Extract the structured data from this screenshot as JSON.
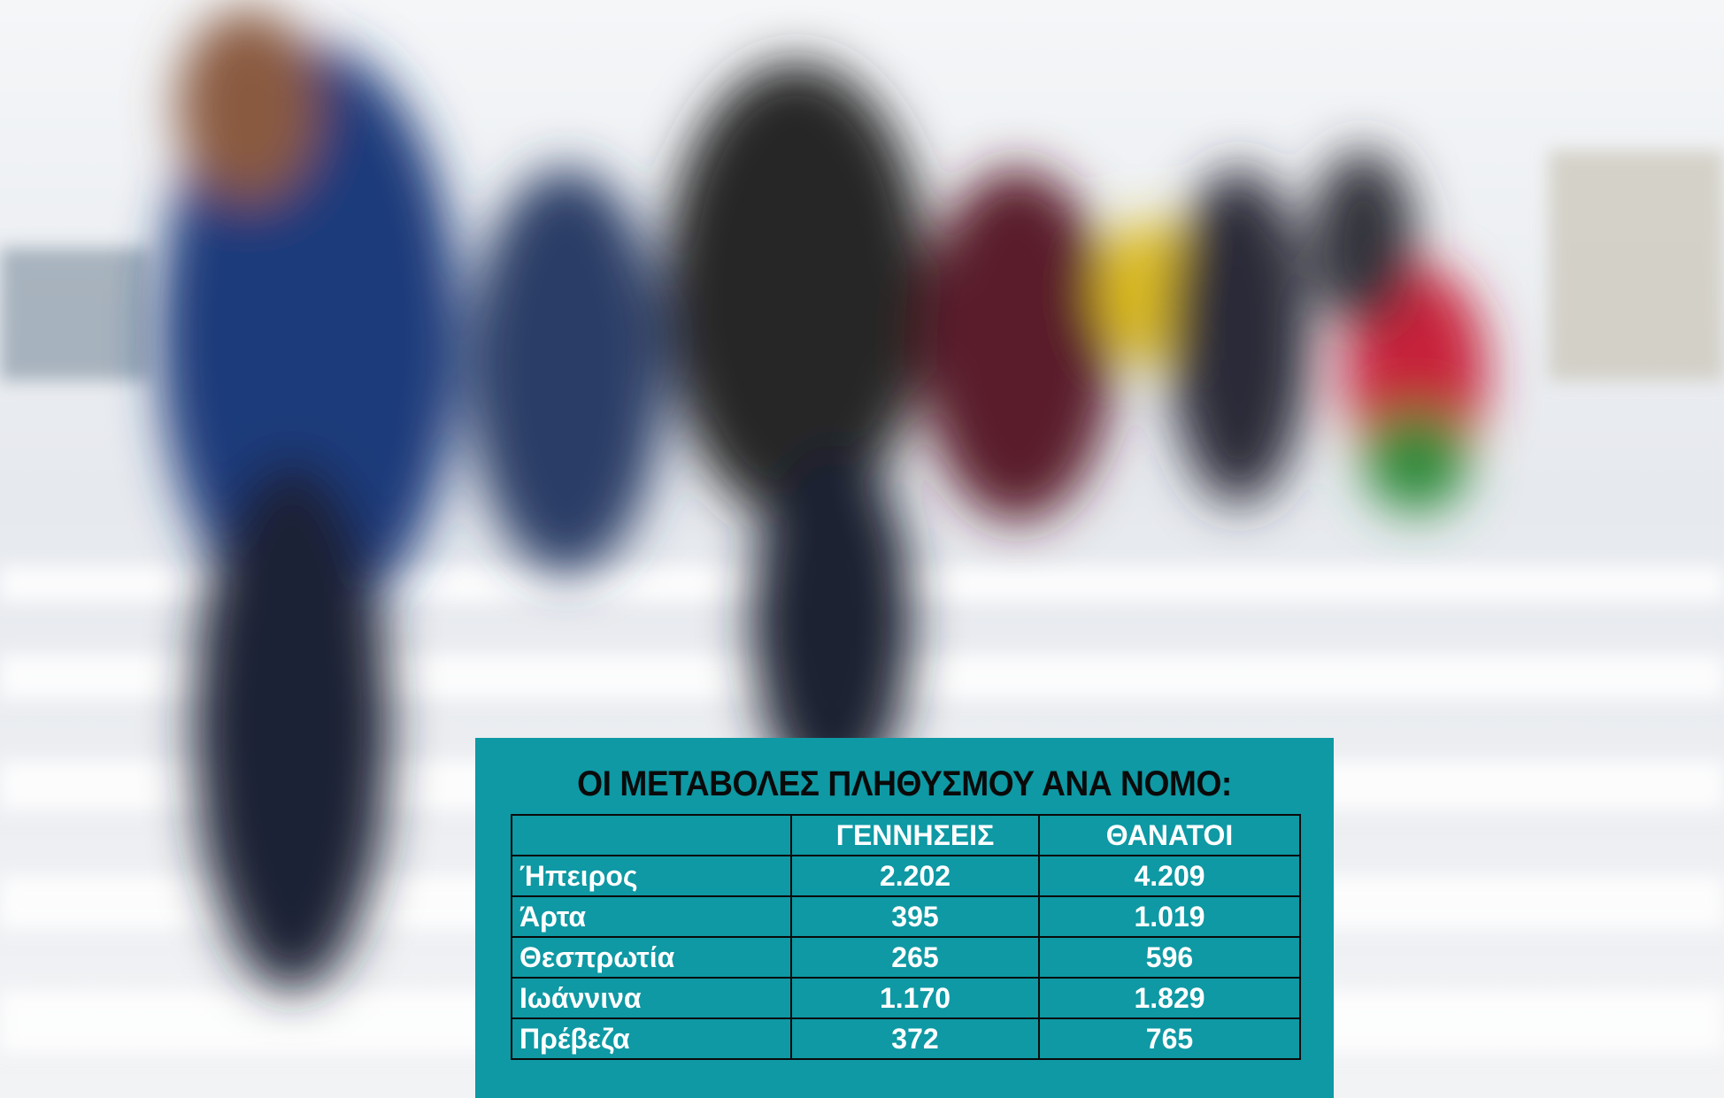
{
  "title": "ΟΙ ΜΕΤΑΒΟΛΕΣ ΠΛΗΘΥΣΜΟΥ ΑΝΑ ΝΟΜΟ:",
  "table": {
    "headers": [
      "ΓΕΝΝΗΣΕΙΣ",
      "ΘΑΝΑΤΟΙ"
    ],
    "rows": [
      [
        "Ήπειρος",
        "2.202",
        "4.209"
      ],
      [
        "Άρτα",
        "395",
        "1.019"
      ],
      [
        "Θεσπρωτία",
        "265",
        "596"
      ],
      [
        "Ιωάννινα",
        "1.170",
        "1.829"
      ],
      [
        "Πρέβεζα",
        "372",
        "765"
      ]
    ]
  }
}
